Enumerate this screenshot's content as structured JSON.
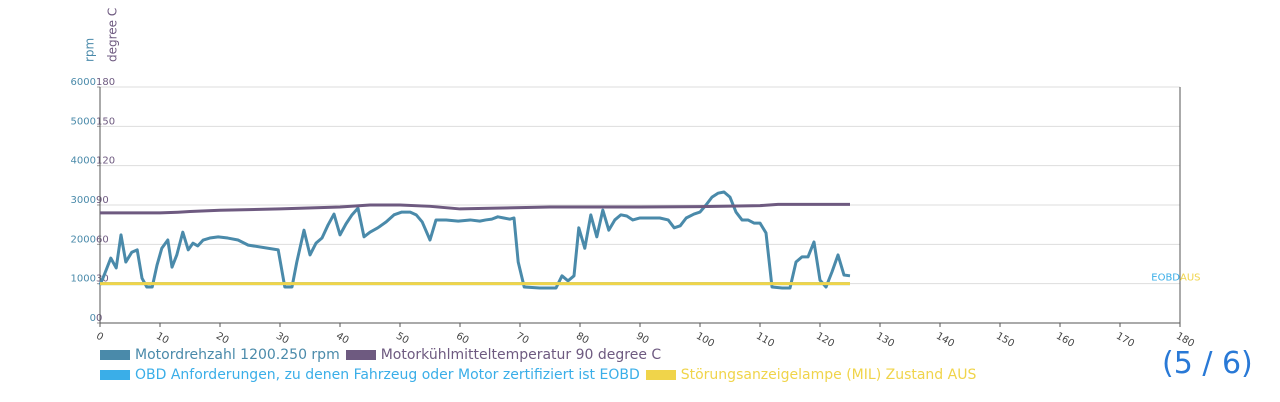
{
  "chart_data": {
    "type": "line",
    "y_label": "rpm",
    "y2_label": "degree C",
    "xlim": [
      0,
      180
    ],
    "xticks": [
      0,
      10,
      20,
      30,
      40,
      50,
      60,
      70,
      80,
      90,
      100,
      110,
      120,
      130,
      140,
      150,
      160,
      170,
      180
    ],
    "ylim": [
      0,
      6000
    ],
    "yticks": [
      0,
      1000,
      2000,
      3000,
      4000,
      5000,
      6000
    ],
    "y2lim": [
      0,
      180
    ],
    "y2ticks": [
      0,
      30,
      60,
      90,
      120,
      150,
      180
    ],
    "y_color": "#4a8aaa",
    "y2_color": "#6e5a80",
    "grid": true,
    "series": [
      {
        "name": "Motordrehzahl 1200.250 rpm",
        "color": "#4a8aaa",
        "axis": "y",
        "x": [
          0,
          0.7,
          1.8,
          2.7,
          3.5,
          4.3,
          5.3,
          6.2,
          7,
          7.8,
          8.7,
          9.5,
          10.3,
          11.3,
          12,
          12.8,
          13.8,
          14.7,
          15.5,
          16.3,
          17.2,
          18.3,
          19.7,
          21.3,
          23,
          24.7,
          29.7,
          30.8,
          32,
          32.8,
          34,
          35,
          36,
          37,
          38,
          39,
          40,
          41,
          42,
          43,
          44,
          45,
          46.3,
          47.7,
          49,
          50.3,
          51.7,
          52.7,
          53.7,
          55,
          56,
          57.7,
          59.7,
          61.7,
          63.3,
          64.3,
          65.3,
          66.3,
          67.3,
          68.3,
          69,
          69.7,
          70.7,
          73.3,
          76,
          77,
          78,
          79,
          79.8,
          80.8,
          81.8,
          82.8,
          83.8,
          84.8,
          85.8,
          86.8,
          87.8,
          88.8,
          90,
          91.7,
          93.3,
          94.7,
          95.7,
          96.7,
          97.7,
          99,
          100,
          101,
          102,
          103,
          104,
          105,
          106,
          107,
          108,
          109,
          110,
          111,
          112,
          113.7,
          115,
          116,
          117,
          118,
          119,
          120,
          121,
          122,
          123,
          124,
          125
        ],
        "values": [
          970,
          1220,
          1650,
          1400,
          2240,
          1550,
          1800,
          1860,
          1140,
          915,
          915,
          1470,
          1900,
          2110,
          1420,
          1730,
          2310,
          1860,
          2030,
          1960,
          2110,
          2160,
          2190,
          2160,
          2110,
          1980,
          1860,
          915,
          915,
          1550,
          2360,
          1730,
          2030,
          2160,
          2490,
          2770,
          2240,
          2520,
          2750,
          2920,
          2190,
          2310,
          2420,
          2570,
          2750,
          2820,
          2820,
          2750,
          2570,
          2110,
          2620,
          2620,
          2590,
          2620,
          2590,
          2620,
          2640,
          2700,
          2670,
          2640,
          2670,
          1550,
          915,
          890,
          890,
          1200,
          1070,
          1200,
          2420,
          1900,
          2750,
          2190,
          2870,
          2360,
          2620,
          2750,
          2720,
          2620,
          2670,
          2670,
          2670,
          2620,
          2420,
          2470,
          2670,
          2770,
          2820,
          3000,
          3200,
          3300,
          3330,
          3200,
          2820,
          2620,
          2620,
          2540,
          2540,
          2290,
          915,
          890,
          890,
          1550,
          1680,
          1680,
          2060,
          1090,
          915,
          1300,
          1730,
          1220,
          1200
        ]
      },
      {
        "name": "Motorkühlmitteltemperatur 90 degree C",
        "color": "#6e5a80",
        "axis": "y2",
        "x": [
          0,
          10,
          13,
          15,
          20,
          30,
          40,
          45,
          50,
          55,
          60,
          65,
          75,
          80,
          90,
          100,
          110,
          113,
          125
        ],
        "values": [
          84,
          84,
          84.5,
          85,
          86,
          87,
          88.5,
          90,
          90,
          89,
          87,
          87.5,
          88.5,
          88.5,
          88.5,
          88.8,
          89.5,
          90.5,
          90.5
        ]
      },
      {
        "name": "OBD Anforderungen, zu denen Fahrzeug oder Motor zertifiziert ist EOBD",
        "color": "#3aaee8",
        "axis": "y",
        "x": [
          0,
          125
        ],
        "values": [
          1000,
          1000
        ],
        "end_label": "EOBD"
      },
      {
        "name": "Störungsanzeigelampe (MIL) Zustand AUS",
        "color": "#f0d44a",
        "axis": "y",
        "x": [
          0,
          125
        ],
        "values": [
          1000,
          1000
        ],
        "end_label": "AUS"
      }
    ]
  },
  "pager": "(5 / 6)"
}
